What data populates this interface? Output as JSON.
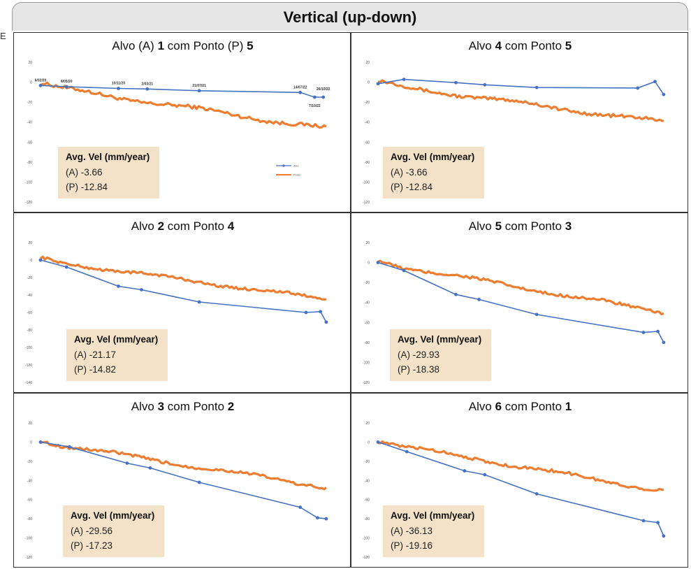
{
  "header": {
    "title": "Vertical (up-down)"
  },
  "edge_letter": "E",
  "colors": {
    "alvo": "#4472c4",
    "ponto": "#ed7d31",
    "box": "#f3e1c8"
  },
  "box_heading": "Avg. Vel (mm/year)",
  "chart_data": [
    {
      "type": "line",
      "title_parts": [
        {
          "t": "Alvo (A) "
        },
        {
          "t": "1",
          "b": true
        },
        {
          "t": " com Ponto (P) "
        },
        {
          "t": "5",
          "b": true
        }
      ],
      "ylim": [
        -100,
        20
      ],
      "yticks": [
        "20",
        "0",
        "-20",
        "-40",
        "-60",
        "-80",
        "-100",
        "-120"
      ],
      "alvo": [
        [
          0,
          0
        ],
        [
          0.09,
          -1
        ],
        [
          0.27,
          -2.5
        ],
        [
          0.37,
          -3
        ],
        [
          0.55,
          -4.5
        ],
        [
          0.9,
          -6
        ],
        [
          0.95,
          -10
        ],
        [
          0.98,
          -10
        ]
      ],
      "ponto_start": 0,
      "ponto_end": -37,
      "annotations": [
        {
          "text": "6/02/20",
          "x": 0,
          "y": 0,
          "dy": -6
        },
        {
          "text": "6/05/20",
          "x": 0.09,
          "y": -1,
          "dy": -6
        },
        {
          "text": "10/11/20",
          "x": 0.27,
          "y": -2.5,
          "dy": -6
        },
        {
          "text": "2/03/21",
          "x": 0.37,
          "y": -3,
          "dy": -6
        },
        {
          "text": "21/07/21",
          "x": 0.55,
          "y": -4.5,
          "dy": -6
        },
        {
          "text": "14/07/22",
          "x": 0.9,
          "y": -6,
          "dy": -6
        },
        {
          "text": "7/10/22",
          "x": 0.95,
          "y": -10,
          "dy": 14
        },
        {
          "text": "26/10/22",
          "x": 0.98,
          "y": -10,
          "dy": -10
        }
      ],
      "legend": [
        "Alvo",
        "Ponto"
      ],
      "values": [
        "(A) -3.66",
        "(P) -12.84"
      ]
    },
    {
      "type": "line",
      "title_parts": [
        {
          "t": "Alvo "
        },
        {
          "t": "4",
          "b": true
        },
        {
          "t": " com Ponto "
        },
        {
          "t": "5",
          "b": true
        }
      ],
      "ylim": [
        -110,
        20
      ],
      "yticks": [
        "20",
        "0",
        "-20",
        "-40",
        "-60",
        "-80",
        "-100",
        "-120"
      ],
      "alvo": [
        [
          0,
          0
        ],
        [
          0.09,
          4
        ],
        [
          0.27,
          1
        ],
        [
          0.37,
          -1
        ],
        [
          0.55,
          -3.5
        ],
        [
          0.9,
          -4
        ],
        [
          0.96,
          2
        ],
        [
          0.99,
          -10
        ]
      ],
      "ponto_start": 0,
      "ponto_end": -36,
      "values": [
        "(A) -3.66",
        "(P) -12.84"
      ]
    },
    {
      "type": "line",
      "title_parts": [
        {
          "t": "Alvo "
        },
        {
          "t": "2",
          "b": true
        },
        {
          "t": " com Ponto "
        },
        {
          "t": "4",
          "b": true
        }
      ],
      "ylim": [
        -140,
        20
      ],
      "yticks": [
        "20",
        "0",
        "-20",
        "-40",
        "-60",
        "-80",
        "-100",
        "-120",
        "-140"
      ],
      "alvo": [
        [
          0,
          0
        ],
        [
          0.09,
          -8
        ],
        [
          0.27,
          -30
        ],
        [
          0.35,
          -34
        ],
        [
          0.55,
          -48
        ],
        [
          0.92,
          -60
        ],
        [
          0.97,
          -59
        ],
        [
          0.99,
          -71
        ]
      ],
      "ponto_start": 0,
      "ponto_end": -45,
      "values": [
        "(A) -21.17",
        "(P) -14.82"
      ]
    },
    {
      "type": "line",
      "title_parts": [
        {
          "t": "Alvo "
        },
        {
          "t": "5",
          "b": true
        },
        {
          "t": " com Ponto "
        },
        {
          "t": "3",
          "b": true
        }
      ],
      "ylim": [
        -120,
        20
      ],
      "yticks": [
        "20",
        "0",
        "-20",
        "-40",
        "-60",
        "-80",
        "-100",
        "-120"
      ],
      "alvo": [
        [
          0,
          0
        ],
        [
          0.09,
          -8
        ],
        [
          0.27,
          -32
        ],
        [
          0.35,
          -37
        ],
        [
          0.55,
          -52
        ],
        [
          0.92,
          -70
        ],
        [
          0.97,
          -69
        ],
        [
          0.99,
          -80
        ]
      ],
      "ponto_start": 0,
      "ponto_end": -50,
      "values": [
        "(A) -29.93",
        "(P) -18.38"
      ]
    },
    {
      "type": "line",
      "title_parts": [
        {
          "t": "Alvo "
        },
        {
          "t": "3",
          "b": true
        },
        {
          "t": " com Ponto "
        },
        {
          "t": "2",
          "b": true
        }
      ],
      "ylim": [
        -120,
        20
      ],
      "yticks": [
        "20",
        "0",
        "-20",
        "-40",
        "-60",
        "-80",
        "-100",
        "-120"
      ],
      "alvo": [
        [
          0,
          0
        ],
        [
          0.1,
          -5
        ],
        [
          0.3,
          -22
        ],
        [
          0.38,
          -27
        ],
        [
          0.55,
          -42
        ],
        [
          0.9,
          -68
        ],
        [
          0.96,
          -79
        ],
        [
          0.99,
          -80
        ]
      ],
      "ponto_start": 0,
      "ponto_end": -47,
      "values": [
        "(A) -29.56",
        "(P) -17.23"
      ]
    },
    {
      "type": "line",
      "title_parts": [
        {
          "t": "Alvo "
        },
        {
          "t": "6",
          "b": true
        },
        {
          "t": " com Ponto "
        },
        {
          "t": "1",
          "b": true
        }
      ],
      "ylim": [
        -120,
        20
      ],
      "yticks": [
        "20",
        "0",
        "-20",
        "-40",
        "-60",
        "-80",
        "-100",
        "-120"
      ],
      "alvo": [
        [
          0,
          0
        ],
        [
          0.1,
          -10
        ],
        [
          0.3,
          -30
        ],
        [
          0.37,
          -34
        ],
        [
          0.55,
          -54
        ],
        [
          0.92,
          -82
        ],
        [
          0.97,
          -84
        ],
        [
          0.99,
          -98
        ]
      ],
      "ponto_start": 0,
      "ponto_end": -51,
      "values": [
        "(A) -36.13",
        "(P) -19.16"
      ]
    }
  ]
}
